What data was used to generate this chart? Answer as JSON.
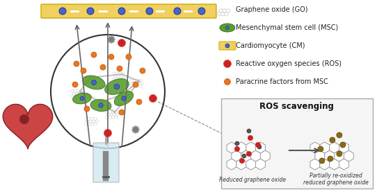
{
  "legend_items": [
    {
      "label": "Graphene oxide (GO)",
      "type": "go"
    },
    {
      "label": "Mesenchymal stem cell (MSC)",
      "type": "msc"
    },
    {
      "label": "Cardiomyocyte (CM)",
      "type": "cm"
    },
    {
      "label": "Reactive oxygen species (ROS)",
      "type": "ros"
    },
    {
      "label": "Paracrine factors from MSC",
      "type": "para"
    }
  ],
  "ros_box_title": "ROS scavenging",
  "ros_label_left": "Reduced graphene oxide",
  "ros_label_right": "Partially re-oxidized\nreduced graphene oxide",
  "bg_color": "#ffffff",
  "legend_fontsize": 7,
  "colors": {
    "green": "#5a9e2f",
    "blue": "#3b5998",
    "yellow": "#f5d020",
    "red": "#cc2222",
    "orange": "#e87722",
    "gray": "#888888",
    "darkgray": "#555555",
    "brown": "#8B6914",
    "lightgray": "#cccccc",
    "graphene_edge": "#aaaaaa"
  }
}
